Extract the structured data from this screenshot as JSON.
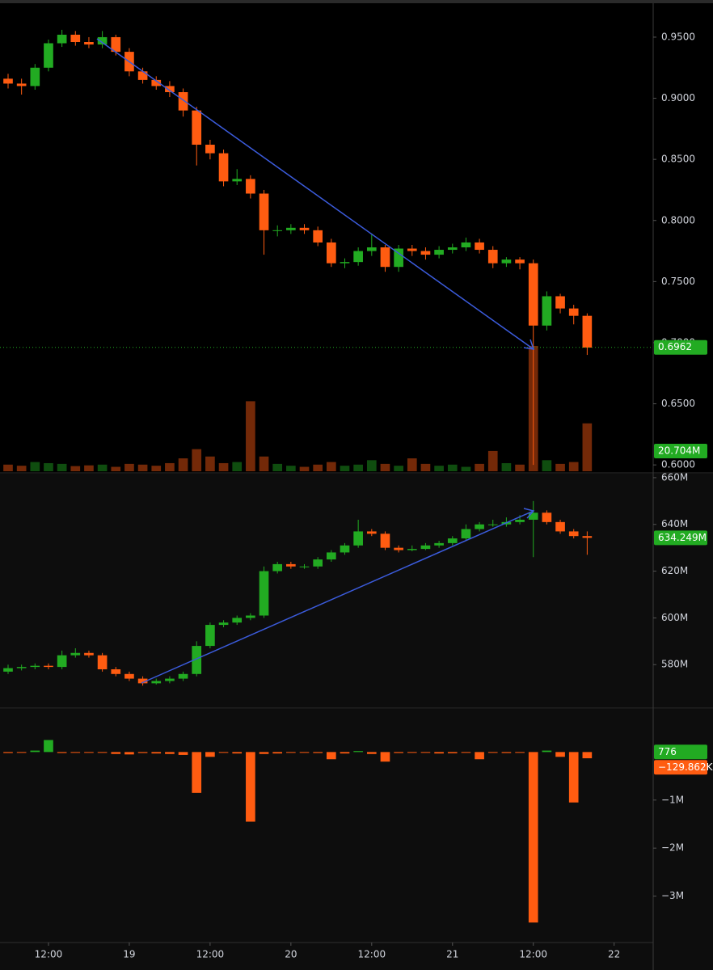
{
  "chart_data": [
    {
      "type": "candlestick",
      "x": [
        6,
        8,
        10,
        12,
        14,
        16,
        18,
        20,
        22,
        24,
        26,
        28,
        30,
        32,
        34,
        36,
        38,
        40,
        42,
        44,
        46,
        48,
        50,
        52,
        54,
        56,
        58,
        60,
        62,
        64,
        66,
        68,
        70,
        72,
        74,
        76,
        78,
        80,
        82,
        84,
        86,
        88,
        90,
        92
      ],
      "open": [
        0.916,
        0.912,
        0.91,
        0.925,
        0.945,
        0.952,
        0.946,
        0.944,
        0.95,
        0.938,
        0.922,
        0.915,
        0.91,
        0.905,
        0.89,
        0.862,
        0.855,
        0.832,
        0.834,
        0.822,
        0.792,
        0.792,
        0.794,
        0.792,
        0.782,
        0.765,
        0.766,
        0.775,
        0.778,
        0.762,
        0.777,
        0.775,
        0.772,
        0.776,
        0.778,
        0.782,
        0.776,
        0.765,
        0.768,
        0.765,
        0.714,
        0.738,
        0.728,
        0.722
      ],
      "high": [
        0.92,
        0.916,
        0.928,
        0.948,
        0.956,
        0.955,
        0.95,
        0.955,
        0.952,
        0.941,
        0.925,
        0.918,
        0.914,
        0.908,
        0.893,
        0.866,
        0.858,
        0.842,
        0.837,
        0.825,
        0.796,
        0.797,
        0.797,
        0.795,
        0.785,
        0.769,
        0.778,
        0.789,
        0.78,
        0.78,
        0.78,
        0.778,
        0.779,
        0.781,
        0.786,
        0.785,
        0.779,
        0.77,
        0.77,
        0.768,
        0.742,
        0.74,
        0.731,
        0.724
      ],
      "low": [
        0.908,
        0.903,
        0.907,
        0.922,
        0.942,
        0.943,
        0.941,
        0.941,
        0.935,
        0.918,
        0.912,
        0.907,
        0.901,
        0.885,
        0.845,
        0.85,
        0.828,
        0.829,
        0.818,
        0.772,
        0.787,
        0.789,
        0.789,
        0.779,
        0.762,
        0.761,
        0.763,
        0.771,
        0.758,
        0.758,
        0.771,
        0.768,
        0.769,
        0.773,
        0.775,
        0.773,
        0.761,
        0.762,
        0.76,
        0.6,
        0.71,
        0.724,
        0.715,
        0.69
      ],
      "close": [
        0.912,
        0.91,
        0.925,
        0.945,
        0.952,
        0.946,
        0.944,
        0.95,
        0.938,
        0.922,
        0.915,
        0.91,
        0.905,
        0.89,
        0.862,
        0.855,
        0.832,
        0.834,
        0.822,
        0.792,
        0.792,
        0.794,
        0.792,
        0.782,
        0.765,
        0.766,
        0.775,
        0.778,
        0.762,
        0.777,
        0.775,
        0.772,
        0.776,
        0.778,
        0.782,
        0.776,
        0.765,
        0.768,
        0.765,
        0.714,
        0.738,
        0.728,
        0.722,
        0.696
      ],
      "up_color": "#22ab22",
      "down_color": "#ff5c11",
      "xlim": [
        4.8,
        101.8
      ],
      "ylim": [
        0.5948,
        0.9804
      ],
      "yticks": [
        {
          "value": 0.6,
          "label": "0.6000"
        },
        {
          "value": 0.65,
          "label": "0.6500"
        },
        {
          "value": 0.7,
          "label": "0.7000"
        },
        {
          "value": 0.75,
          "label": "0.7500"
        },
        {
          "value": 0.8,
          "label": "0.8000"
        },
        {
          "value": 0.85,
          "label": "0.8500"
        },
        {
          "value": 0.9,
          "label": "0.9000"
        },
        {
          "value": 0.95,
          "label": "0.9500"
        }
      ],
      "last_value": 0.6962,
      "volume": {
        "values": [
          18,
          15,
          25,
          22,
          20,
          14,
          16,
          18,
          12,
          20,
          18,
          15,
          22,
          35,
          60,
          40,
          22,
          25,
          190,
          40,
          20,
          15,
          12,
          18,
          25,
          15,
          18,
          30,
          20,
          15,
          35,
          20,
          15,
          18,
          12,
          20,
          55,
          22,
          18,
          340,
          30,
          20,
          25,
          130
        ],
        "last_value": {
          "value": 20.704,
          "label": "20.704M"
        }
      }
    },
    {
      "type": "candlestick",
      "x": [
        6,
        8,
        10,
        12,
        14,
        16,
        18,
        20,
        22,
        24,
        26,
        28,
        30,
        32,
        34,
        36,
        38,
        40,
        42,
        44,
        46,
        48,
        50,
        52,
        54,
        56,
        58,
        60,
        62,
        64,
        66,
        68,
        70,
        72,
        74,
        76,
        78,
        80,
        82,
        84,
        86,
        88,
        90,
        92
      ],
      "open": [
        577,
        578.5,
        579,
        579.5,
        579,
        584,
        585,
        584,
        578,
        576,
        574,
        572,
        573,
        574,
        576,
        588,
        597,
        598,
        600,
        601,
        620,
        623,
        622,
        622,
        625,
        628,
        631,
        637,
        636,
        630,
        629,
        629.5,
        631,
        632,
        634,
        638,
        640,
        640,
        641,
        642,
        645,
        641,
        637,
        635
      ],
      "high": [
        580,
        580,
        580.5,
        580.5,
        586,
        587,
        586,
        585,
        579,
        577,
        575,
        574,
        575,
        577,
        590,
        598,
        599,
        601,
        602,
        622,
        624,
        624,
        623,
        626,
        629,
        632,
        642,
        638,
        637,
        631,
        631,
        632,
        633,
        635,
        640,
        641,
        642,
        643,
        644,
        650,
        646,
        642,
        638,
        637
      ],
      "low": [
        576,
        577.5,
        578,
        578,
        578,
        583,
        583,
        577,
        575,
        573,
        571,
        571.5,
        572,
        573,
        575,
        587,
        596,
        597,
        599,
        600,
        619,
        621,
        621,
        621,
        624,
        627,
        630,
        635,
        629,
        628,
        628.5,
        629,
        630,
        631,
        633,
        637,
        639,
        639,
        640,
        626,
        640,
        636,
        634,
        627
      ],
      "close": [
        578.5,
        579,
        579.5,
        579,
        584,
        585,
        584,
        578,
        576,
        574,
        572,
        573,
        574,
        576,
        588,
        597,
        598,
        600,
        601,
        620,
        623,
        622,
        622,
        625,
        628,
        631,
        637,
        636,
        630,
        629,
        629.5,
        631,
        632,
        634,
        638,
        640,
        640,
        641,
        642,
        645,
        641,
        637,
        635,
        634.249
      ],
      "up_color": "#22ab22",
      "down_color": "#ff5c11",
      "xlim": [
        4.8,
        101.8
      ],
      "ylim": [
        561.4,
        661.7
      ],
      "yticks": [
        {
          "value": 580,
          "label": "580M"
        },
        {
          "value": 600,
          "label": "600M"
        },
        {
          "value": 620,
          "label": "620M"
        },
        {
          "value": 640,
          "label": "640M"
        },
        {
          "value": 660,
          "label": "660M"
        }
      ],
      "last_value": {
        "value": 634.249,
        "label": "634.249M"
      }
    },
    {
      "type": "bar",
      "x": [
        6,
        8,
        10,
        12,
        14,
        16,
        18,
        20,
        22,
        24,
        26,
        28,
        30,
        32,
        34,
        36,
        38,
        40,
        42,
        44,
        46,
        48,
        50,
        52,
        54,
        56,
        58,
        60,
        62,
        64,
        66,
        68,
        70,
        72,
        74,
        76,
        78,
        80,
        82,
        84,
        86,
        88,
        90,
        92
      ],
      "values": [
        -20000,
        -15000,
        30000,
        250000,
        -20000,
        -15000,
        -10000,
        -15000,
        -40000,
        -50000,
        -20000,
        -30000,
        -40000,
        -60000,
        -850000,
        -100000,
        -10000,
        -30000,
        -1450000,
        -40000,
        -30000,
        -10000,
        -15000,
        -20000,
        -150000,
        -30000,
        20000,
        -40000,
        -200000,
        -20000,
        -10000,
        -15000,
        -30000,
        -25000,
        -10000,
        -150000,
        -10000,
        -20000,
        -15000,
        -3550000,
        30000,
        -100000,
        -1050000,
        -129862
      ],
      "up_color": "#22ab22",
      "down_color": "#ff5c11",
      "xlim": [
        4.8,
        101.8
      ],
      "ylim": [
        -3966000,
        898000
      ],
      "yticks": [
        {
          "value": -3000000,
          "label": "−3M"
        },
        {
          "value": -2000000,
          "label": "−2M"
        },
        {
          "value": -1000000,
          "label": "−1M"
        }
      ],
      "last_values": [
        776,
        {
          "value": -129862,
          "label": "−129.862K"
        }
      ],
      "xticks": [
        {
          "value": 12,
          "label": "12:00"
        },
        {
          "value": 24,
          "label": "19"
        },
        {
          "value": 36,
          "label": "12:00"
        },
        {
          "value": 48,
          "label": "20"
        },
        {
          "value": 60,
          "label": "12:00"
        },
        {
          "value": 72,
          "label": "21"
        },
        {
          "value": 84,
          "label": "12:00"
        },
        {
          "value": 96,
          "label": "22"
        }
      ]
    }
  ]
}
